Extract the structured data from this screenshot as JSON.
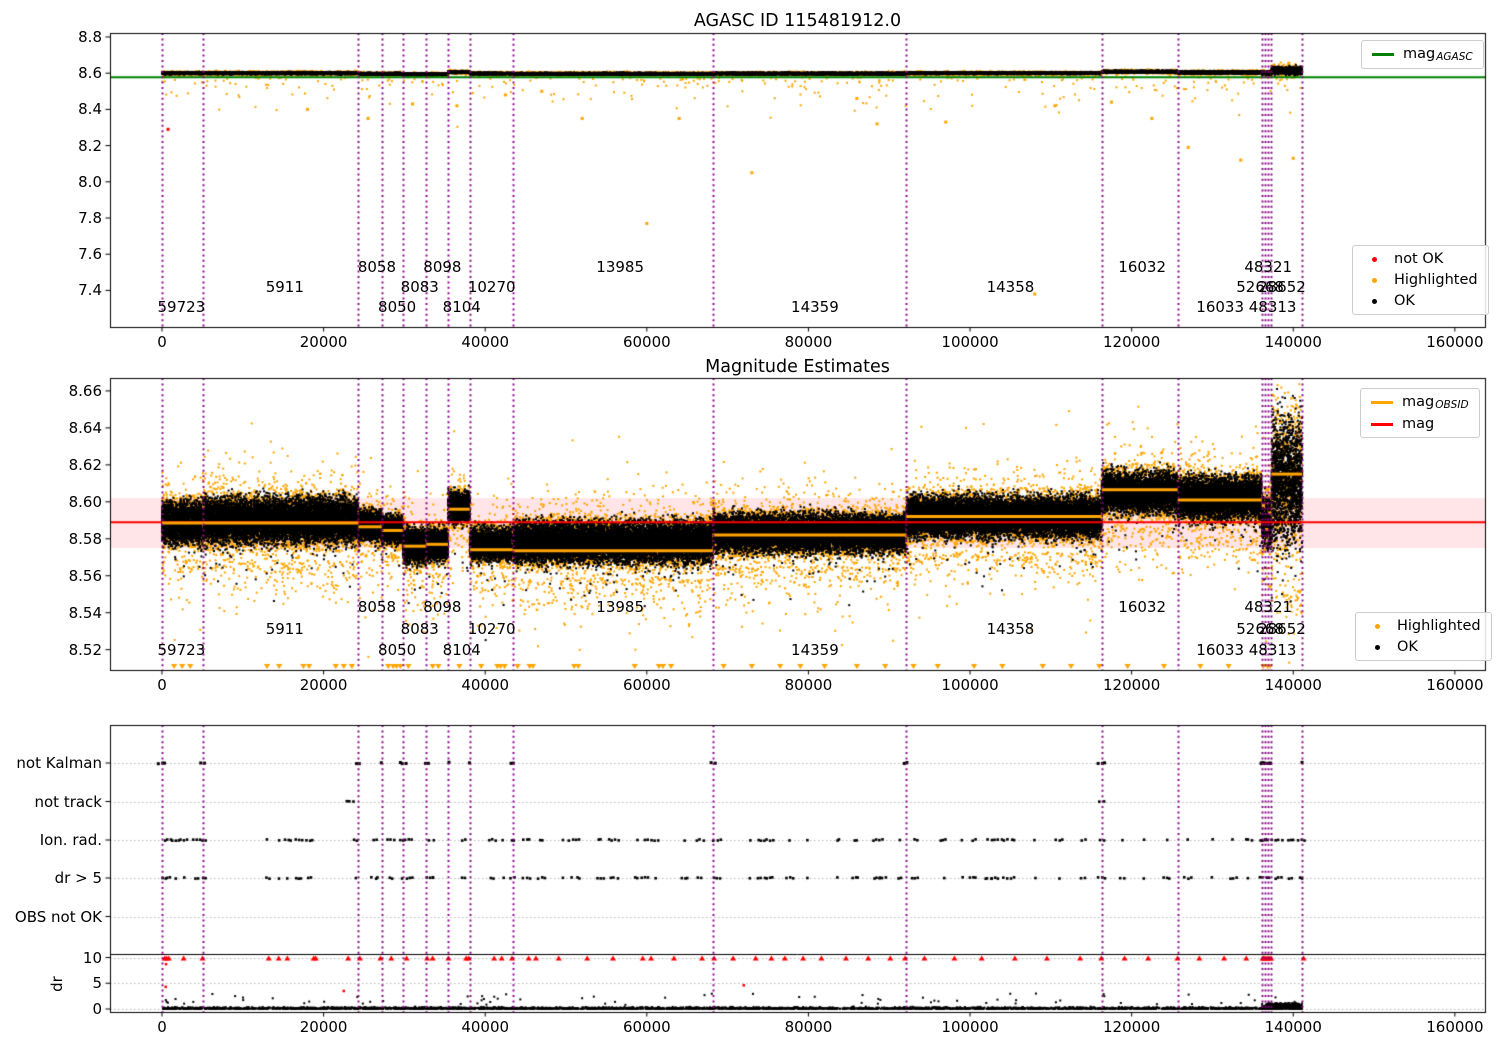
{
  "figure": {
    "background": "#ffffff"
  },
  "palette": {
    "green": "#008000",
    "orange": "#ffa500",
    "red": "#ff0000",
    "purple": "#8a008a",
    "black": "#000000",
    "band_pink": "rgba(255,0,25,0.10)",
    "grid": "#b8b8b8"
  },
  "chart_data": [
    {
      "id": "top",
      "type": "scatter",
      "title": "AGASC ID 115481912.0",
      "xlim": [
        -6435,
        163730
      ],
      "xticks": [
        0,
        20000,
        40000,
        60000,
        80000,
        100000,
        120000,
        140000,
        160000
      ],
      "xtick_labels": [
        "0",
        "20000",
        "40000",
        "60000",
        "80000",
        "100000",
        "120000",
        "140000",
        "160000"
      ],
      "ylim": [
        7.198,
        8.822
      ],
      "yticks": [
        7.4,
        7.6,
        7.8,
        8.0,
        8.2,
        8.4,
        8.6,
        8.8
      ],
      "ytick_labels": [
        "7.4",
        "7.6",
        "7.8",
        "8.0",
        "8.2",
        "8.4",
        "8.6",
        "8.8"
      ],
      "hline": {
        "value": 8.578,
        "color": "green"
      },
      "line_legend": [
        {
          "type": "line",
          "label": "mag",
          "sub": "AGASC",
          "color": "green"
        }
      ],
      "marker_legend": [
        {
          "type": "marker",
          "label": "not OK",
          "color": "red"
        },
        {
          "type": "marker",
          "label": "Highlighted",
          "color": "orange"
        },
        {
          "type": "marker",
          "label": "OK",
          "color": "black"
        }
      ],
      "vlines_x": [
        0,
        5100,
        24300,
        27200,
        29800,
        32700,
        35400,
        38100,
        43400,
        68200,
        92100,
        116300,
        125700,
        136100,
        136500,
        136900,
        137200,
        141100
      ],
      "ok_band_segments": [
        {
          "x0": 0,
          "x1": 24300,
          "center": 8.6,
          "half": 0.009
        },
        {
          "x0": 24300,
          "x1": 29800,
          "center": 8.597,
          "half": 0.008
        },
        {
          "x0": 29800,
          "x1": 35400,
          "center": 8.594,
          "half": 0.008
        },
        {
          "x0": 35400,
          "x1": 38100,
          "center": 8.606,
          "half": 0.009
        },
        {
          "x0": 38100,
          "x1": 43400,
          "center": 8.598,
          "half": 0.008
        },
        {
          "x0": 43400,
          "x1": 68200,
          "center": 8.597,
          "half": 0.008
        },
        {
          "x0": 68200,
          "x1": 92100,
          "center": 8.598,
          "half": 0.008
        },
        {
          "x0": 92100,
          "x1": 116300,
          "center": 8.6,
          "half": 0.008
        },
        {
          "x0": 116300,
          "x1": 125700,
          "center": 8.608,
          "half": 0.009
        },
        {
          "x0": 125700,
          "x1": 136100,
          "center": 8.604,
          "half": 0.01
        },
        {
          "x0": 136100,
          "x1": 137300,
          "center": 8.601,
          "half": 0.014
        },
        {
          "x0": 137300,
          "x1": 141100,
          "center": 8.614,
          "half": 0.03
        }
      ],
      "highlighted_outliers": [
        [
          60000,
          7.77
        ],
        [
          108000,
          7.38
        ],
        [
          73000,
          8.05
        ],
        [
          88500,
          8.32
        ],
        [
          97000,
          8.33
        ],
        [
          31000,
          8.43
        ],
        [
          36500,
          8.42
        ],
        [
          42500,
          8.48
        ],
        [
          18000,
          8.4
        ],
        [
          25500,
          8.35
        ],
        [
          133500,
          8.12
        ],
        [
          127000,
          8.19
        ],
        [
          122500,
          8.35
        ],
        [
          140000,
          8.13
        ],
        [
          86000,
          8.46
        ],
        [
          64000,
          8.35
        ],
        [
          47000,
          8.5
        ],
        [
          52000,
          8.35
        ],
        [
          110500,
          8.42
        ],
        [
          117500,
          8.44
        ]
      ],
      "not_ok_points": [
        [
          750,
          8.29
        ]
      ],
      "obsid_labels": [
        {
          "text": "59723",
          "x": 2400,
          "y": 7.31
        },
        {
          "text": "5911",
          "x": 15200,
          "y": 7.42
        },
        {
          "text": "8058",
          "x": 26600,
          "y": 7.53
        },
        {
          "text": "8050",
          "x": 29100,
          "y": 7.31
        },
        {
          "text": "8083",
          "x": 31900,
          "y": 7.42
        },
        {
          "text": "8098",
          "x": 34700,
          "y": 7.53
        },
        {
          "text": "8104",
          "x": 37100,
          "y": 7.31
        },
        {
          "text": "10270",
          "x": 40800,
          "y": 7.42
        },
        {
          "text": "13985",
          "x": 56700,
          "y": 7.53
        },
        {
          "text": "14359",
          "x": 80800,
          "y": 7.31
        },
        {
          "text": "14358",
          "x": 105000,
          "y": 7.42
        },
        {
          "text": "16032",
          "x": 121300,
          "y": 7.53
        },
        {
          "text": "48321",
          "x": 136900,
          "y": 7.53
        },
        {
          "text": "52668",
          "x": 135900,
          "y": 7.42
        },
        {
          "text": "28652",
          "x": 138600,
          "y": 7.42
        },
        {
          "text": "16033 48313",
          "x": 134200,
          "y": 7.31
        }
      ]
    },
    {
      "id": "middle",
      "type": "scatter",
      "title": "Magnitude Estimates",
      "xlim": [
        -6435,
        163730
      ],
      "xticks": [
        0,
        20000,
        40000,
        60000,
        80000,
        100000,
        120000,
        140000,
        160000
      ],
      "xtick_labels": [
        "0",
        "20000",
        "40000",
        "60000",
        "80000",
        "100000",
        "120000",
        "140000",
        "160000"
      ],
      "ylim": [
        8.509,
        8.667
      ],
      "yticks": [
        8.52,
        8.54,
        8.56,
        8.58,
        8.6,
        8.62,
        8.64,
        8.66
      ],
      "ytick_labels": [
        "8.52",
        "8.54",
        "8.56",
        "8.58",
        "8.60",
        "8.62",
        "8.64",
        "8.66"
      ],
      "hline": {
        "value": 8.589,
        "color": "red"
      },
      "band": {
        "low": 8.575,
        "high": 8.602
      },
      "line_legend": [
        {
          "type": "line",
          "label": "mag",
          "sub": "OBSID",
          "color": "orange"
        },
        {
          "type": "line",
          "label": "mag",
          "sub": "",
          "color": "red"
        }
      ],
      "marker_legend": [
        {
          "type": "marker",
          "label": "Highlighted",
          "color": "orange"
        },
        {
          "type": "marker",
          "label": "OK",
          "color": "black"
        }
      ],
      "vlines_x": [
        0,
        5100,
        24300,
        27200,
        29800,
        32700,
        35400,
        38100,
        43400,
        68200,
        92100,
        116300,
        125700,
        136100,
        136500,
        136900,
        137200,
        141100
      ],
      "segments": [
        {
          "obsid": "59723",
          "x0": 0,
          "x1": 5100,
          "mag_obsid": 8.5885,
          "center": 8.589,
          "half": 0.0165
        },
        {
          "obsid": "5911",
          "x0": 5100,
          "x1": 24300,
          "mag_obsid": 8.5885,
          "center": 8.59,
          "half": 0.018
        },
        {
          "obsid": "8058",
          "x0": 24300,
          "x1": 27200,
          "mag_obsid": 8.5865,
          "center": 8.587,
          "half": 0.012
        },
        {
          "obsid": "8050",
          "x0": 27200,
          "x1": 29800,
          "mag_obsid": 8.5845,
          "center": 8.585,
          "half": 0.011
        },
        {
          "obsid": "8083",
          "x0": 29800,
          "x1": 32700,
          "mag_obsid": 8.576,
          "center": 8.576,
          "half": 0.014
        },
        {
          "obsid": "8098",
          "x0": 32700,
          "x1": 35400,
          "mag_obsid": 8.577,
          "center": 8.577,
          "half": 0.013
        },
        {
          "obsid": "8104",
          "x0": 35400,
          "x1": 38100,
          "mag_obsid": 8.596,
          "center": 8.597,
          "half": 0.012
        },
        {
          "obsid": "10270",
          "x0": 38100,
          "x1": 43400,
          "mag_obsid": 8.574,
          "center": 8.577,
          "half": 0.013
        },
        {
          "obsid": "13985",
          "x0": 43400,
          "x1": 68200,
          "mag_obsid": 8.5735,
          "center": 8.578,
          "half": 0.016
        },
        {
          "obsid": "14359",
          "x0": 68200,
          "x1": 92100,
          "mag_obsid": 8.582,
          "center": 8.583,
          "half": 0.015
        },
        {
          "obsid": "14358",
          "x0": 92100,
          "x1": 116300,
          "mag_obsid": 8.592,
          "center": 8.592,
          "half": 0.016
        },
        {
          "obsid": "16032",
          "x0": 116300,
          "x1": 125700,
          "mag_obsid": 8.6065,
          "center": 8.605,
          "half": 0.016
        },
        {
          "obsid": "16033",
          "x0": 125700,
          "x1": 136100,
          "mag_obsid": 8.601,
          "center": 8.602,
          "half": 0.017
        },
        {
          "obsid": "48321",
          "x0": 136100,
          "x1": 136500,
          "mag_obsid": 8.598,
          "center": 8.59,
          "half": 0.02
        },
        {
          "obsid": "52668",
          "x0": 136500,
          "x1": 136900,
          "mag_obsid": 8.585,
          "center": 8.59,
          "half": 0.02
        },
        {
          "obsid": "28652",
          "x0": 136900,
          "x1": 137300,
          "mag_obsid": 8.594,
          "center": 8.59,
          "half": 0.02
        },
        {
          "obsid": "48313",
          "x0": 137300,
          "x1": 141100,
          "mag_obsid": 8.615,
          "center": 8.612,
          "half": 0.05
        }
      ],
      "clipped_low_x": [
        1500,
        2500,
        3500,
        13000,
        14500,
        17500,
        18200,
        21500,
        22500,
        23500,
        28000,
        28600,
        29000,
        29500,
        30500,
        33500,
        34200,
        36800,
        39500,
        41500,
        41900,
        42400,
        44000,
        45500,
        45900,
        51000,
        51500,
        58500,
        61500,
        62000,
        63000,
        69500,
        73000,
        76500,
        79000,
        82000,
        86000,
        89500,
        93000,
        96000,
        100500,
        104000,
        109000,
        112500,
        116000,
        119500,
        124000,
        128500,
        132000,
        136300,
        136800,
        137100
      ],
      "obsid_labels": [
        {
          "text": "59723",
          "x": 2400,
          "y": 8.52
        },
        {
          "text": "5911",
          "x": 15200,
          "y": 8.531
        },
        {
          "text": "8058",
          "x": 26600,
          "y": 8.543
        },
        {
          "text": "8050",
          "x": 29100,
          "y": 8.52
        },
        {
          "text": "8083",
          "x": 31900,
          "y": 8.531
        },
        {
          "text": "8098",
          "x": 34700,
          "y": 8.543
        },
        {
          "text": "8104",
          "x": 37100,
          "y": 8.52
        },
        {
          "text": "10270",
          "x": 40800,
          "y": 8.531
        },
        {
          "text": "13985",
          "x": 56700,
          "y": 8.543
        },
        {
          "text": "14359",
          "x": 80800,
          "y": 8.52
        },
        {
          "text": "14358",
          "x": 105000,
          "y": 8.531
        },
        {
          "text": "16032",
          "x": 121300,
          "y": 8.543
        },
        {
          "text": "48321",
          "x": 136900,
          "y": 8.543
        },
        {
          "text": "52668",
          "x": 135900,
          "y": 8.531
        },
        {
          "text": "28652",
          "x": 138600,
          "y": 8.531
        },
        {
          "text": "16033 48313",
          "x": 134200,
          "y": 8.52
        }
      ]
    },
    {
      "id": "bottom",
      "type": "scatter",
      "categories": [
        "not Kalman",
        "not track",
        "Ion. rad.",
        "dr > 5",
        "OBS not OK"
      ],
      "dr_axis_label": "dr",
      "dr_ticks": [
        0,
        5,
        10
      ],
      "dr_tick_labels": [
        "0",
        "5",
        "10"
      ],
      "xticks": [
        0,
        20000,
        40000,
        60000,
        80000,
        100000,
        120000,
        140000,
        160000
      ],
      "xtick_labels": [
        "0",
        "20000",
        "40000",
        "60000",
        "80000",
        "100000",
        "120000",
        "140000",
        "160000"
      ],
      "vlines_x": [
        0,
        5100,
        24300,
        27200,
        29800,
        32700,
        35400,
        38100,
        43400,
        68200,
        92100,
        116300,
        125700,
        136100,
        136500,
        136900,
        137200,
        141100
      ],
      "flags": {
        "not_kalman_x": [
          0,
          5100,
          24300,
          27200,
          29800,
          32700,
          35400,
          38100,
          43400,
          68200,
          92100,
          116300,
          136100,
          136500,
          136900,
          137200,
          141100
        ],
        "not_track_x": [
          23300,
          116300
        ],
        "ion_rad_x": [
          300,
          900,
          1700,
          2700,
          4300,
          5200,
          13100,
          14400,
          15600,
          16900,
          18300,
          24000,
          26400,
          28300,
          29800,
          30700,
          33100,
          33600,
          37400,
          40900,
          42200,
          43400,
          45100,
          47000,
          49600,
          50600,
          51500,
          54200,
          55700,
          56400,
          58900,
          60000,
          61000,
          64700,
          66600,
          68700,
          72800,
          74200,
          75200,
          77700,
          79900,
          83700,
          85800,
          88500,
          89200,
          91300,
          93200,
          96700,
          99100,
          100400,
          102200,
          103100,
          104300,
          105300,
          108000,
          111000,
          114000,
          116300,
          118800,
          121500,
          124300,
          127000,
          130000,
          132500,
          134500,
          136300,
          136900,
          138200,
          139700,
          141000
        ],
        "dr_gt5_x": [
          300,
          900,
          1700,
          2700,
          4300,
          5200,
          13100,
          14400,
          15600,
          16900,
          18300,
          24000,
          26400,
          28300,
          29800,
          30700,
          33100,
          33600,
          37400,
          40900,
          42200,
          43400,
          45100,
          47000,
          49600,
          50600,
          51500,
          54200,
          55700,
          56400,
          58900,
          60000,
          61000,
          64700,
          66600,
          68700,
          72800,
          74200,
          75200,
          77700,
          79900,
          83700,
          85800,
          88500,
          89200,
          91300,
          93200,
          96700,
          99100,
          100400,
          102200,
          103100,
          104300,
          105300,
          108000,
          111000,
          114000,
          116300,
          118800,
          121500,
          124300,
          127000,
          130000,
          132500,
          134500,
          136300,
          136900,
          138200,
          139700,
          141000
        ]
      },
      "dr_red_clipped_x": [
        200,
        600,
        1000,
        2600,
        5100,
        13100,
        14400,
        15600,
        18600,
        18900,
        23000,
        24500,
        27200,
        28500,
        30300,
        32800,
        33500,
        35400,
        37500,
        38100,
        41000,
        42200,
        43400,
        45200,
        46200,
        49000,
        52500,
        56000,
        59500,
        60500,
        63500,
        67000,
        68200,
        70500,
        73500,
        75500,
        77000,
        79500,
        81500,
        84500,
        87500,
        90000,
        92100,
        94500,
        98000,
        101500,
        105500,
        109500,
        113500,
        116300,
        119000,
        122000,
        125700,
        128500,
        131500,
        134000,
        136150,
        136300,
        136450,
        136600,
        136750,
        136900,
        137050,
        137200,
        141100
      ],
      "dr_red_points": [
        [
          500,
          8.7
        ],
        [
          460,
          4.3
        ],
        [
          22500,
          3.5
        ],
        [
          72000,
          4.6
        ]
      ],
      "dr_black_cluster": {
        "x0": 136800,
        "x1": 141100,
        "max": 2.6
      }
    }
  ]
}
